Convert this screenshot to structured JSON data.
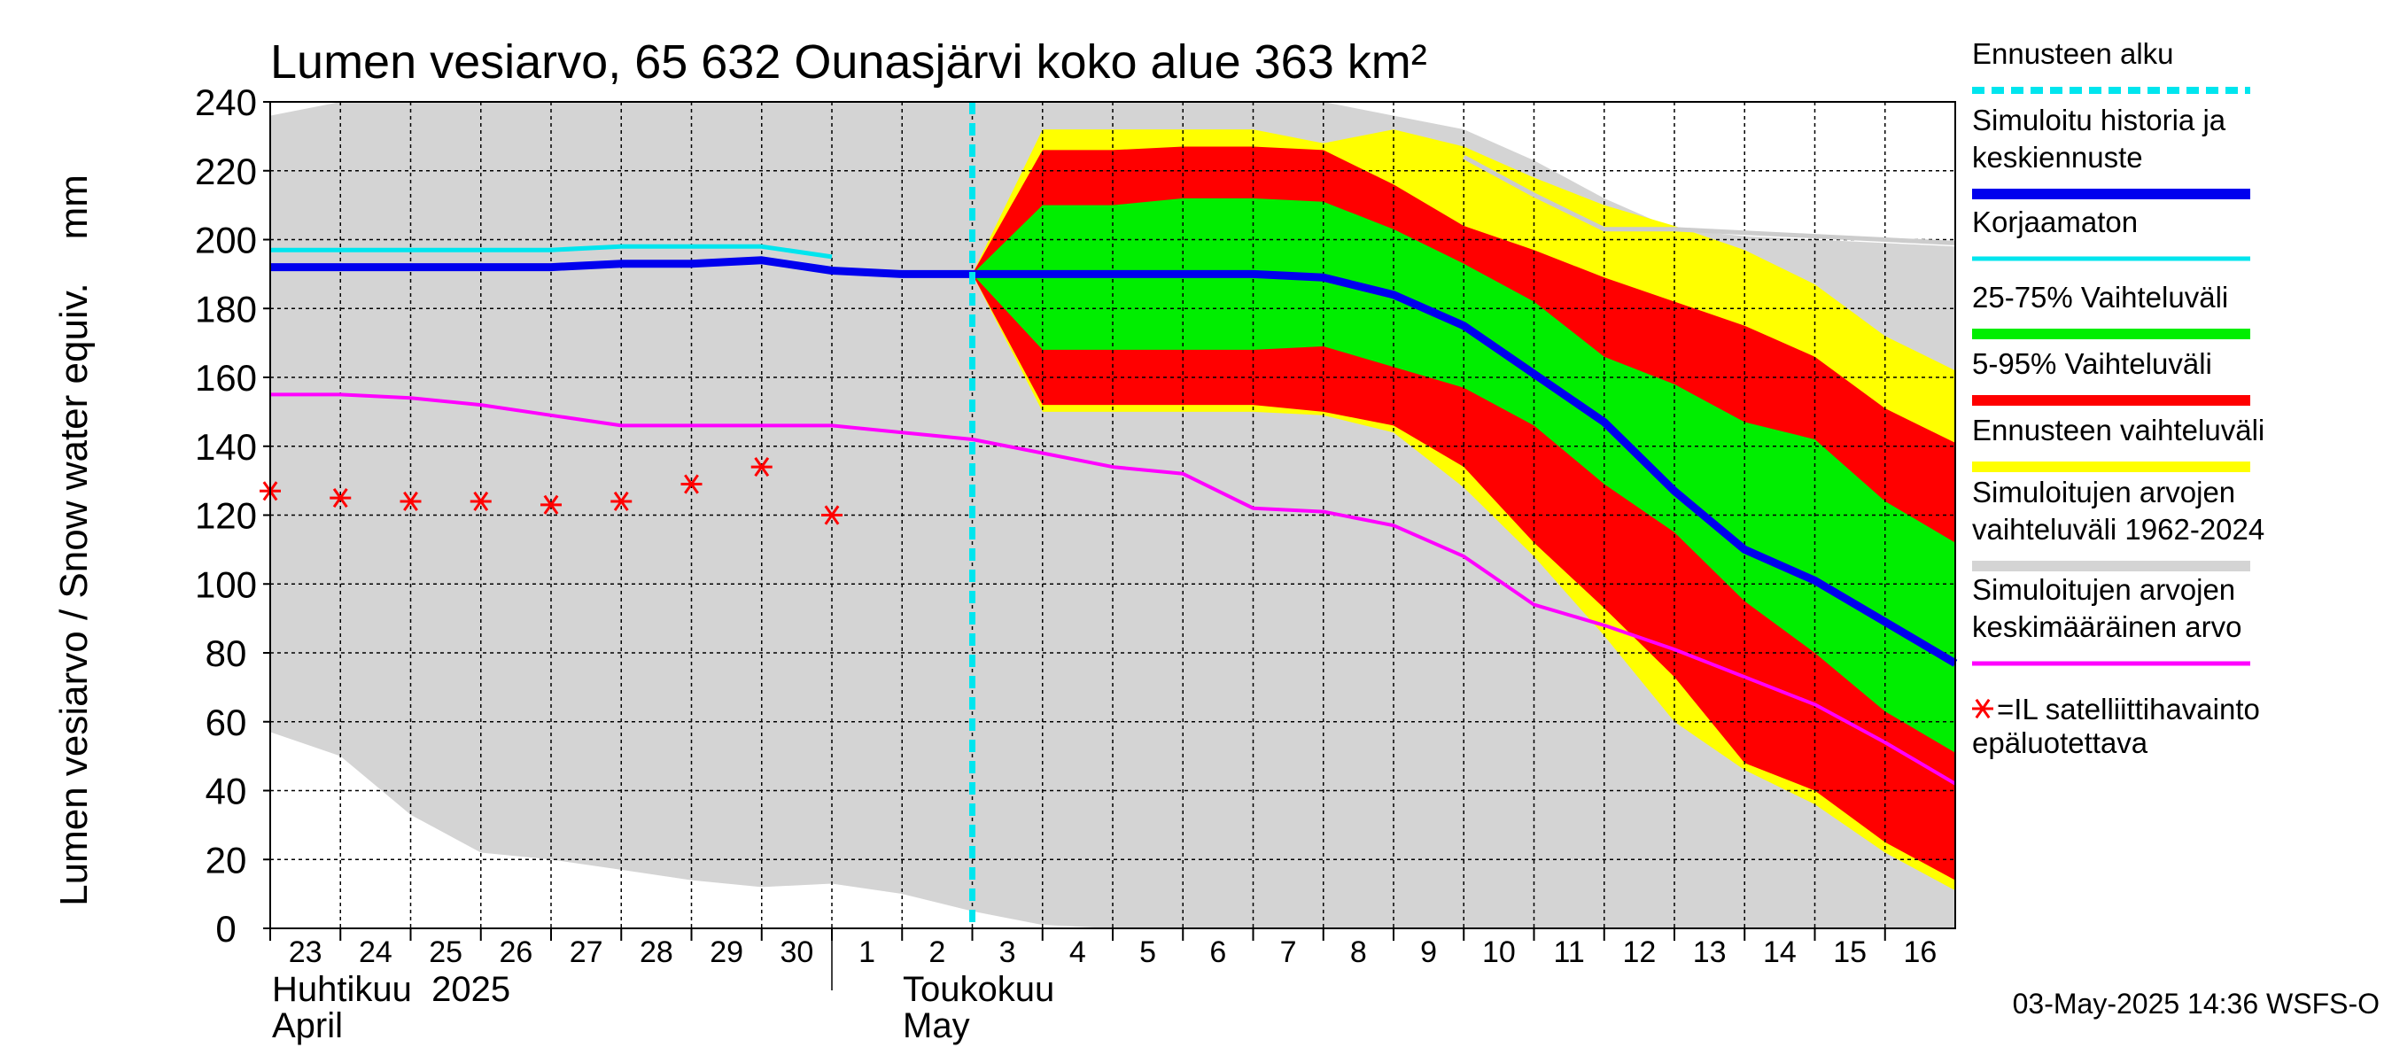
{
  "chart_data": {
    "type": "area",
    "title": "Lumen vesiarvo, 65 632 Ounasjärvi koko alue 363 km²",
    "ylabel": "Lumen vesiarvo / Snow water equiv.    mm",
    "ylim": [
      0,
      240
    ],
    "yticks": [
      0,
      20,
      40,
      60,
      80,
      100,
      120,
      140,
      160,
      180,
      200,
      220,
      240
    ],
    "x_day_labels": [
      "23",
      "24",
      "25",
      "26",
      "27",
      "28",
      "29",
      "30",
      "1",
      "2",
      "3",
      "4",
      "5",
      "6",
      "7",
      "8",
      "9",
      "10",
      "11",
      "12",
      "13",
      "14",
      "15",
      "16"
    ],
    "month_labels": [
      {
        "fi": "Huhtikuu  2025",
        "en": "April"
      },
      {
        "fi": "Toukokuu",
        "en": "May"
      }
    ],
    "forecast_start": "2025-05-03",
    "x_dates": [
      "2025-04-23",
      "2025-04-24",
      "2025-04-25",
      "2025-04-26",
      "2025-04-27",
      "2025-04-28",
      "2025-04-29",
      "2025-04-30",
      "2025-05-01",
      "2025-05-02",
      "2025-05-03",
      "2025-05-04",
      "2025-05-05",
      "2025-05-06",
      "2025-05-07",
      "2025-05-08",
      "2025-05-09",
      "2025-05-10",
      "2025-05-11",
      "2025-05-12",
      "2025-05-13",
      "2025-05-14",
      "2025-05-15",
      "2025-05-16",
      "2025-05-17"
    ],
    "series": [
      {
        "name": "Simuloitujen arvojen vaihteluväli 1962-2024",
        "kind": "band",
        "color": "#d4d4d4",
        "upper": [
          236,
          240,
          240,
          240,
          240,
          240,
          240,
          240,
          240,
          240,
          240,
          240,
          240,
          240,
          240,
          240,
          236,
          232,
          223,
          212,
          203,
          201,
          200,
          199,
          198
        ],
        "lower": [
          57,
          50,
          33,
          22,
          20,
          17,
          14,
          12,
          13,
          10,
          5,
          1,
          0,
          0,
          0,
          0,
          0,
          0,
          0,
          0,
          0,
          0,
          0,
          0,
          0
        ]
      },
      {
        "name": "Ennusteen vaihteluväli",
        "kind": "band",
        "color": "#ffff00",
        "dates": [
          "2025-05-03",
          "2025-05-04",
          "2025-05-05",
          "2025-05-06",
          "2025-05-07",
          "2025-05-08",
          "2025-05-09",
          "2025-05-10",
          "2025-05-11",
          "2025-05-12",
          "2025-05-13",
          "2025-05-14",
          "2025-05-15",
          "2025-05-16",
          "2025-05-17"
        ],
        "upper": [
          190,
          232,
          232,
          232,
          232,
          228,
          232,
          227,
          218,
          210,
          204,
          197,
          187,
          172,
          162
        ],
        "lower": [
          190,
          150,
          150,
          150,
          150,
          149,
          144,
          128,
          108,
          85,
          60,
          46,
          36,
          22,
          11
        ]
      },
      {
        "name": "5-95% Vaihteluväli",
        "kind": "band",
        "color": "#ff0000",
        "dates": [
          "2025-05-03",
          "2025-05-04",
          "2025-05-05",
          "2025-05-06",
          "2025-05-07",
          "2025-05-08",
          "2025-05-09",
          "2025-05-10",
          "2025-05-11",
          "2025-05-12",
          "2025-05-13",
          "2025-05-14",
          "2025-05-15",
          "2025-05-16",
          "2025-05-17"
        ],
        "upper": [
          190,
          226,
          226,
          227,
          227,
          226,
          216,
          204,
          197,
          189,
          182,
          175,
          166,
          151,
          141
        ],
        "lower": [
          190,
          152,
          152,
          152,
          152,
          150,
          146,
          134,
          112,
          93,
          73,
          48,
          40,
          25,
          14
        ]
      },
      {
        "name": "25-75% Vaihteluväli",
        "kind": "band",
        "color": "#00ee00",
        "dates": [
          "2025-05-03",
          "2025-05-04",
          "2025-05-05",
          "2025-05-06",
          "2025-05-07",
          "2025-05-08",
          "2025-05-09",
          "2025-05-10",
          "2025-05-11",
          "2025-05-12",
          "2025-05-13",
          "2025-05-14",
          "2025-05-15",
          "2025-05-16",
          "2025-05-17"
        ],
        "upper": [
          190,
          210,
          210,
          212,
          212,
          211,
          203,
          193,
          182,
          166,
          158,
          147,
          142,
          124,
          112
        ],
        "lower": [
          190,
          168,
          168,
          168,
          168,
          169,
          163,
          157,
          146,
          129,
          115,
          95,
          80,
          63,
          51
        ]
      },
      {
        "name": "Korjaamaton",
        "kind": "line",
        "color": "#00e5ee",
        "dates": [
          "2025-04-23",
          "2025-04-24",
          "2025-04-25",
          "2025-04-26",
          "2025-04-27",
          "2025-04-28",
          "2025-04-29",
          "2025-04-30",
          "2025-05-01"
        ],
        "values": [
          197,
          197,
          197,
          197,
          197,
          198,
          198,
          198,
          195
        ]
      },
      {
        "name": "Korjaamaton (ennuste)",
        "kind": "line",
        "color": "#cccccc",
        "dates": [
          "2025-05-10",
          "2025-05-11",
          "2025-05-12",
          "2025-05-13",
          "2025-05-14",
          "2025-05-15",
          "2025-05-16",
          "2025-05-17"
        ],
        "values": [
          224,
          213,
          203,
          203,
          202,
          201,
          200,
          199
        ]
      },
      {
        "name": "Simuloitujen arvojen keskimääräinen arvo",
        "kind": "line",
        "color": "#ff00ff",
        "values": [
          155,
          155,
          154,
          152,
          149,
          146,
          146,
          146,
          146,
          144,
          142,
          138,
          134,
          132,
          122,
          121,
          117,
          108,
          94,
          88,
          81,
          73,
          65,
          54,
          42
        ]
      },
      {
        "name": "Simuloitu historia ja keskiennuste",
        "kind": "line",
        "color": "#0000ee",
        "values": [
          192,
          192,
          192,
          192,
          192,
          193,
          193,
          194,
          191,
          190,
          190,
          190,
          190,
          190,
          190,
          189,
          184,
          175,
          161,
          147,
          127,
          110,
          101,
          89,
          77
        ]
      },
      {
        "name": "=IL satelliittihavainto epäluotettava",
        "kind": "scatter",
        "color": "#ff0000",
        "marker": "asterisk",
        "dates": [
          "2025-04-23",
          "2025-04-24",
          "2025-04-25",
          "2025-04-26",
          "2025-04-27",
          "2025-04-28",
          "2025-04-29",
          "2025-04-30",
          "2025-05-01"
        ],
        "values": [
          127,
          125,
          124,
          124,
          123,
          124,
          129,
          134,
          120
        ]
      }
    ]
  },
  "legend": [
    {
      "line1": "Ennusteen alku",
      "line2": "",
      "color": "#00e5ee",
      "style": "dashed"
    },
    {
      "line1": "Simuloitu historia ja",
      "line2": "keskiennuste",
      "color": "#0000ee",
      "style": "thick"
    },
    {
      "line1": "Korjaamaton",
      "line2": "",
      "color": "#00e5ee",
      "style": "line"
    },
    {
      "line1": "25-75% Vaihteluväli",
      "line2": "",
      "color": "#00ee00",
      "style": "thick"
    },
    {
      "line1": "5-95% Vaihteluväli",
      "line2": "",
      "color": "#ff0000",
      "style": "thick"
    },
    {
      "line1": "Ennusteen vaihteluväli",
      "line2": "",
      "color": "#ffff00",
      "style": "thick"
    },
    {
      "line1": "Simuloitujen arvojen",
      "line2": "vaihteluväli 1962-2024",
      "color": "#d4d4d4",
      "style": "thick"
    },
    {
      "line1": "Simuloitujen arvojen",
      "line2": "keskimääräinen arvo",
      "color": "#ff00ff",
      "style": "line"
    },
    {
      "line1": "=IL satelliittihavainto",
      "line2": "epäluotettava",
      "color": "#ff0000",
      "style": "asterisk"
    }
  ],
  "footer": "03-May-2025 14:36 WSFS-O"
}
